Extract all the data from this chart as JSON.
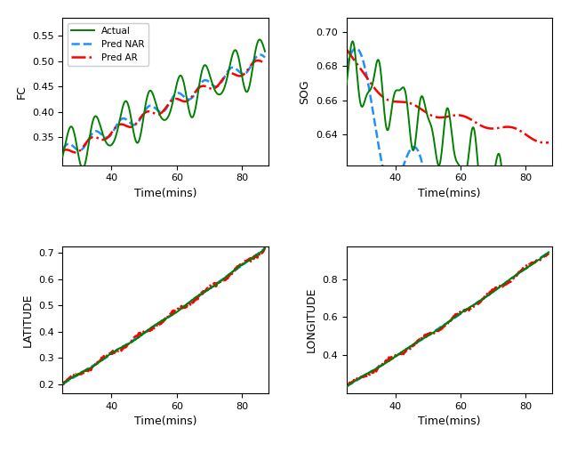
{
  "legend_labels": [
    "Actual",
    "Pred NAR",
    "Pred AR"
  ],
  "actual_color": "#008000",
  "nar_color": "#1E90FF",
  "ar_color": "#FF0000",
  "actual_style": "-",
  "nar_style": "--",
  "ar_style": "-.",
  "xlabel": "Time(mins)",
  "panels": [
    "FC",
    "SOG",
    "LATITUDE",
    "LONGITUDE"
  ],
  "xlim": [
    25,
    88
  ],
  "xticks": [
    40,
    60,
    80
  ],
  "fc_ylim": [
    0.295,
    0.585
  ],
  "fc_yticks": [
    0.35,
    0.4,
    0.45,
    0.5,
    0.55
  ],
  "sog_ylim": [
    0.622,
    0.708
  ],
  "sog_yticks": [
    0.64,
    0.66,
    0.68,
    0.7
  ],
  "lat_ylim": [
    0.165,
    0.725
  ],
  "lat_yticks": [
    0.2,
    0.3,
    0.4,
    0.5,
    0.6,
    0.7
  ],
  "lon_ylim": [
    0.195,
    0.975
  ],
  "lon_yticks": [
    0.4,
    0.6,
    0.8
  ]
}
